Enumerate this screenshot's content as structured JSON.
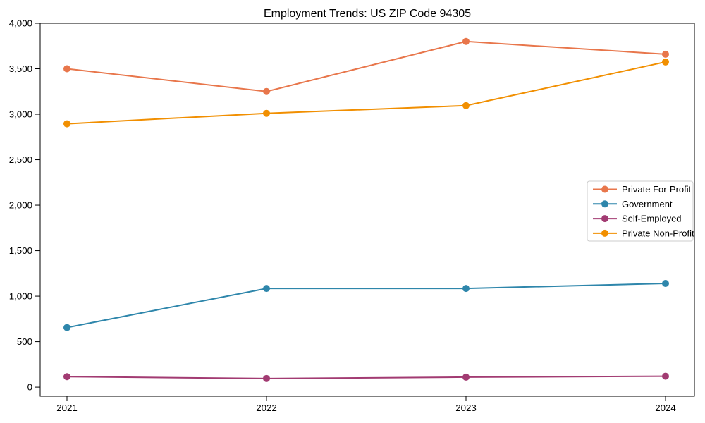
{
  "chart_data": {
    "type": "line",
    "title": "Employment Trends: US ZIP Code 94305",
    "xlabel": "",
    "ylabel": "",
    "categories": [
      "2021",
      "2022",
      "2023",
      "2024"
    ],
    "series": [
      {
        "name": "Private For-Profit",
        "color": "#E8764B",
        "values": [
          3500,
          3250,
          3800,
          3660
        ]
      },
      {
        "name": "Government",
        "color": "#2E86AB",
        "values": [
          655,
          1085,
          1085,
          1140
        ]
      },
      {
        "name": "Self-Employed",
        "color": "#A23B72",
        "values": [
          115,
          95,
          110,
          120
        ]
      },
      {
        "name": "Private Non-Profit",
        "color": "#F18F01",
        "values": [
          2895,
          3010,
          3095,
          3575
        ]
      }
    ],
    "ylim": [
      -100,
      4000
    ],
    "yticks": [
      0,
      500,
      1000,
      1500,
      2000,
      2500,
      3000,
      3500,
      4000
    ],
    "ytick_labels": [
      "0",
      "500",
      "1,000",
      "1,500",
      "2,000",
      "2,500",
      "3,000",
      "3,500",
      "4,000"
    ],
    "grid": false,
    "legend_position": "center right",
    "marker": "circle",
    "axis_color": "#000000",
    "background_color": "#ffffff",
    "legend_border_color": "#cccccc"
  }
}
